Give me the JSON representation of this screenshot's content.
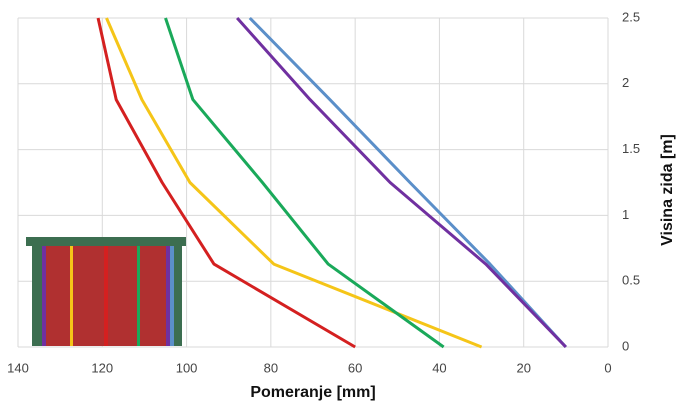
{
  "chart_data": {
    "type": "line",
    "x_label": "Pomeranje [mm]",
    "y_label": "Visina zida [m]",
    "xlim": [
      140,
      0
    ],
    "xticks": [
      140,
      120,
      100,
      80,
      60,
      40,
      20,
      0
    ],
    "ylim": [
      0,
      2.5
    ],
    "yticks": [
      0,
      0.5,
      1,
      1.5,
      2,
      2.5
    ],
    "grid": true,
    "series": [
      {
        "color": "#d42020",
        "x": [
          121,
          116.7,
          105.8,
          93.5,
          60
        ],
        "values": [
          2.5,
          1.88,
          1.25,
          0.63,
          0
        ]
      },
      {
        "color": "#f5c518",
        "x": [
          119,
          110.6,
          99.2,
          79.3,
          30
        ],
        "values": [
          2.5,
          1.88,
          1.25,
          0.63,
          0
        ]
      },
      {
        "color": "#1aa95a",
        "x": [
          105,
          98.5,
          82,
          66.4,
          39
        ],
        "values": [
          2.5,
          1.88,
          1.25,
          0.63,
          0
        ]
      },
      {
        "color": "#5b8fc9",
        "x": [
          85,
          66,
          47,
          28,
          10
        ],
        "values": [
          2.5,
          1.88,
          1.25,
          0.63,
          0
        ]
      },
      {
        "color": "#7030a0",
        "x": [
          88,
          70.7,
          51.7,
          29,
          10
        ],
        "values": [
          2.5,
          1.88,
          1.25,
          0.63,
          0
        ]
      }
    ]
  }
}
